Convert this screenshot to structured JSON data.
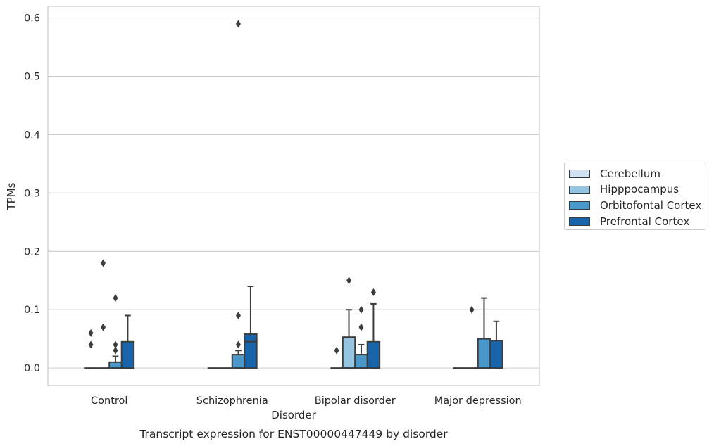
{
  "chart_data": {
    "type": "box",
    "title": "Transcript expression for ENST00000447449 by disorder",
    "xlabel": "Disorder",
    "ylabel": "TPMs",
    "categories": [
      "Control",
      "Schizophrenia",
      "Bipolar disorder",
      "Major depression"
    ],
    "ylim": [
      -0.03,
      0.62
    ],
    "yticks": [
      0.0,
      0.1,
      0.2,
      0.3,
      0.4,
      0.5,
      0.6
    ],
    "ytick_labels": [
      "0.0",
      "0.1",
      "0.2",
      "0.3",
      "0.4",
      "0.5",
      "0.6"
    ],
    "grid": true,
    "legend_position": "right",
    "series": [
      {
        "name": "Cerebellum",
        "color": "#d0e1f2",
        "boxes": [
          {
            "q1": 0,
            "median": 0,
            "q3": 0,
            "whisker_low": 0,
            "whisker_high": 0,
            "outliers": [
              0.04,
              0.06
            ]
          },
          {
            "q1": 0,
            "median": 0,
            "q3": 0,
            "whisker_low": 0,
            "whisker_high": 0,
            "outliers": []
          },
          {
            "q1": 0,
            "median": 0,
            "q3": 0,
            "whisker_low": 0,
            "whisker_high": 0,
            "outliers": [
              0.03
            ]
          },
          {
            "q1": 0,
            "median": 0,
            "q3": 0,
            "whisker_low": 0,
            "whisker_high": 0,
            "outliers": []
          }
        ]
      },
      {
        "name": "Hipppocampus",
        "color": "#94c4df",
        "boxes": [
          {
            "q1": 0,
            "median": 0,
            "q3": 0,
            "whisker_low": 0,
            "whisker_high": 0,
            "outliers": [
              0.07,
              0.18
            ]
          },
          {
            "q1": 0,
            "median": 0,
            "q3": 0,
            "whisker_low": 0,
            "whisker_high": 0,
            "outliers": []
          },
          {
            "q1": 0,
            "median": 0,
            "q3": 0.053,
            "whisker_low": 0,
            "whisker_high": 0.1,
            "outliers": [
              0.15
            ]
          },
          {
            "q1": 0,
            "median": 0,
            "q3": 0,
            "whisker_low": 0,
            "whisker_high": 0,
            "outliers": [
              0.1
            ]
          }
        ]
      },
      {
        "name": "Orbitofontal Cortex",
        "color": "#4a98c9",
        "boxes": [
          {
            "q1": 0,
            "median": 0,
            "q3": 0.01,
            "whisker_low": 0,
            "whisker_high": 0.02,
            "outliers": [
              0.03,
              0.04,
              0.12
            ]
          },
          {
            "q1": 0,
            "median": 0,
            "q3": 0.023,
            "whisker_low": 0,
            "whisker_high": 0.03,
            "outliers": [
              0.04,
              0.09,
              0.59
            ]
          },
          {
            "q1": 0,
            "median": 0,
            "q3": 0.023,
            "whisker_low": 0,
            "whisker_high": 0.04,
            "outliers": [
              0.07,
              0.1
            ]
          },
          {
            "q1": 0,
            "median": 0,
            "q3": 0.05,
            "whisker_low": 0,
            "whisker_high": 0.12,
            "outliers": []
          }
        ]
      },
      {
        "name": "Prefrontal Cortex",
        "color": "#1764ab",
        "boxes": [
          {
            "q1": 0,
            "median": 0,
            "q3": 0.045,
            "whisker_low": 0,
            "whisker_high": 0.09,
            "outliers": []
          },
          {
            "q1": 0,
            "median": 0.045,
            "q3": 0.058,
            "whisker_low": 0,
            "whisker_high": 0.14,
            "outliers": []
          },
          {
            "q1": 0,
            "median": 0,
            "q3": 0.045,
            "whisker_low": 0,
            "whisker_high": 0.11,
            "outliers": [
              0.13
            ]
          },
          {
            "q1": 0,
            "median": 0,
            "q3": 0.047,
            "whisker_low": 0,
            "whisker_high": 0.08,
            "outliers": []
          }
        ]
      }
    ]
  }
}
